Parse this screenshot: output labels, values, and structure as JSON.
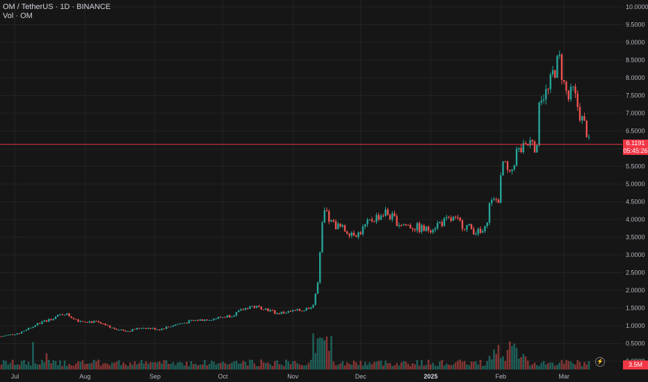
{
  "legend": {
    "symbol_line": "OM / TetherUS · 1D · BINANCE",
    "volume_line": "Vol · OM"
  },
  "last_price": {
    "price": "6.1191",
    "countdown": "05:45:26",
    "value": 6.1191
  },
  "volume_label": "3.5M",
  "colors": {
    "up": "#26a69a",
    "down": "#ef5350",
    "background": "#161616",
    "last_price_line": "#f23645"
  },
  "chart_data": {
    "type": "candlestick",
    "title": "OM / TetherUS · 1D · BINANCE",
    "ylabel": "",
    "xlabel": "",
    "ylim": [
      0,
      10.0
    ],
    "y_ticks": [
      "10.0000",
      "9.5000",
      "9.0000",
      "8.5000",
      "8.0000",
      "7.5000",
      "7.0000",
      "6.5000",
      "6.0000",
      "5.5000",
      "5.0000",
      "4.5000",
      "4.0000",
      "3.5000",
      "3.0000",
      "2.5000",
      "2.0000",
      "1.5000",
      "1.0000",
      "0.5000",
      "0.0000"
    ],
    "x_ticks": [
      {
        "label": "Jul",
        "day": 6
      },
      {
        "label": "Aug",
        "day": 37
      },
      {
        "label": "Sep",
        "day": 68
      },
      {
        "label": "Oct",
        "day": 98
      },
      {
        "label": "Nov",
        "day": 129
      },
      {
        "label": "Dec",
        "day": 159
      },
      {
        "label": "2025",
        "day": 190,
        "bold": true
      },
      {
        "label": "Feb",
        "day": 221
      },
      {
        "label": "Mar",
        "day": 249
      }
    ],
    "grid": true,
    "series_close_keypoints": [
      [
        0,
        0.7
      ],
      [
        8,
        0.8
      ],
      [
        14,
        1.0
      ],
      [
        22,
        1.2
      ],
      [
        28,
        1.35
      ],
      [
        34,
        1.15
      ],
      [
        42,
        1.1
      ],
      [
        48,
        0.95
      ],
      [
        56,
        0.85
      ],
      [
        62,
        0.95
      ],
      [
        70,
        0.9
      ],
      [
        78,
        1.05
      ],
      [
        86,
        1.15
      ],
      [
        94,
        1.2
      ],
      [
        102,
        1.3
      ],
      [
        110,
        1.55
      ],
      [
        116,
        1.5
      ],
      [
        122,
        1.35
      ],
      [
        128,
        1.4
      ],
      [
        134,
        1.45
      ],
      [
        138,
        1.6
      ],
      [
        140,
        2.2
      ],
      [
        141,
        3.0
      ],
      [
        142,
        3.8
      ],
      [
        143,
        4.2
      ],
      [
        146,
        3.9
      ],
      [
        152,
        3.7
      ],
      [
        158,
        3.6
      ],
      [
        164,
        4.0
      ],
      [
        170,
        4.2
      ],
      [
        176,
        3.9
      ],
      [
        182,
        3.8
      ],
      [
        188,
        3.7
      ],
      [
        194,
        3.9
      ],
      [
        200,
        4.0
      ],
      [
        206,
        3.8
      ],
      [
        212,
        3.6
      ],
      [
        214,
        3.7
      ],
      [
        216,
        4.4
      ],
      [
        220,
        4.6
      ],
      [
        222,
        5.6
      ],
      [
        225,
        5.2
      ],
      [
        228,
        5.9
      ],
      [
        232,
        6.0
      ],
      [
        235,
        6.3
      ],
      [
        237,
        5.9
      ],
      [
        238,
        7.5
      ],
      [
        242,
        7.6
      ],
      [
        244,
        8.1
      ],
      [
        246,
        8.4
      ],
      [
        247,
        8.5
      ],
      [
        249,
        7.8
      ],
      [
        251,
        7.4
      ],
      [
        253,
        7.6
      ],
      [
        255,
        7.2
      ],
      [
        257,
        6.8
      ],
      [
        259,
        6.5
      ],
      [
        260,
        6.12
      ]
    ],
    "volume_ylim": [
      0,
      25
    ],
    "volume_unit": "M"
  }
}
